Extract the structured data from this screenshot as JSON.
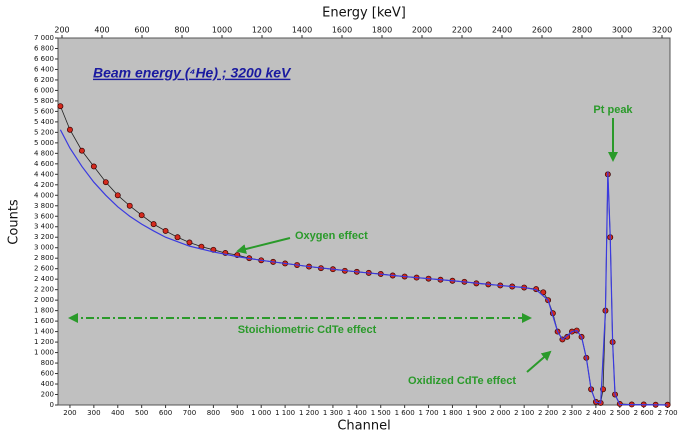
{
  "chart_data": {
    "type": "scatter",
    "title": "Beam energy (⁴He) ; 3200 keV",
    "xlabel": "Channel",
    "ylabel": "Counts",
    "x2label": "Energy [keV]",
    "annotations": [
      "Pt peak",
      "Oxygen effect",
      "Stoichiometric CdTe effect",
      "Oxidized CdTe effect"
    ],
    "xlim": [
      150,
      2710
    ],
    "ylim": [
      0,
      7000
    ],
    "x2lim": [
      180,
      3240
    ],
    "xticks": [
      200,
      300,
      400,
      500,
      600,
      700,
      800,
      900,
      {
        "value": 1000,
        "label": "1 000"
      },
      {
        "value": 1100,
        "label": "1 100"
      },
      {
        "value": 1200,
        "label": "1 200"
      },
      {
        "value": 1300,
        "label": "1 300"
      },
      {
        "value": 1400,
        "label": "1 400"
      },
      {
        "value": 1500,
        "label": "1 500"
      },
      {
        "value": 1600,
        "label": "1 600"
      },
      {
        "value": 1700,
        "label": "1 700"
      },
      {
        "value": 1800,
        "label": "1 800"
      },
      {
        "value": 1900,
        "label": "1 900"
      },
      {
        "value": 2000,
        "label": "2 000"
      },
      {
        "value": 2100,
        "label": "2 100"
      },
      {
        "value": 2200,
        "label": "2 200"
      },
      {
        "value": 2300,
        "label": "2 300"
      },
      {
        "value": 2400,
        "label": "2 400"
      },
      {
        "value": 2500,
        "label": "2 500"
      },
      {
        "value": 2600,
        "label": "2 600"
      },
      {
        "value": 2700,
        "label": "2 700"
      }
    ],
    "yticks": [
      0,
      200,
      400,
      600,
      800,
      {
        "value": 1000,
        "label": "1 000"
      },
      {
        "value": 1200,
        "label": "1 200"
      },
      {
        "value": 1400,
        "label": "1 400"
      },
      {
        "value": 1600,
        "label": "1 600"
      },
      {
        "value": 1800,
        "label": "1 800"
      },
      {
        "value": 2000,
        "label": "2 000"
      },
      {
        "value": 2200,
        "label": "2 200"
      },
      {
        "value": 2400,
        "label": "2 400"
      },
      {
        "value": 2600,
        "label": "2 600"
      },
      {
        "value": 2800,
        "label": "2 800"
      },
      {
        "value": 3000,
        "label": "3 000"
      },
      {
        "value": 3200,
        "label": "3 200"
      },
      {
        "value": 3400,
        "label": "3 400"
      },
      {
        "value": 3600,
        "label": "3 600"
      },
      {
        "value": 3800,
        "label": "3 800"
      },
      {
        "value": 4000,
        "label": "4 000"
      },
      {
        "value": 4200,
        "label": "4 200"
      },
      {
        "value": 4400,
        "label": "4 400"
      },
      {
        "value": 4600,
        "label": "4 600"
      },
      {
        "value": 4800,
        "label": "4 800"
      },
      {
        "value": 5000,
        "label": "5 000"
      },
      {
        "value": 5200,
        "label": "5 200"
      },
      {
        "value": 5400,
        "label": "5 400"
      },
      {
        "value": 5600,
        "label": "5 600"
      },
      {
        "value": 5800,
        "label": "5 800"
      },
      {
        "value": 6000,
        "label": "6 000"
      },
      {
        "value": 6200,
        "label": "6 200"
      },
      {
        "value": 6400,
        "label": "6 400"
      },
      {
        "value": 6600,
        "label": "6 600"
      },
      {
        "value": 6800,
        "label": "6 800"
      },
      {
        "value": 7000,
        "label": "7 000"
      }
    ],
    "x2ticks": [
      200,
      400,
      600,
      800,
      1000,
      1200,
      1400,
      1600,
      1800,
      2000,
      2200,
      2400,
      2600,
      2800,
      3000,
      3200
    ],
    "series": [
      {
        "type": "scatter",
        "color": "#d42a1e",
        "x": [
          160,
          200,
          250,
          300,
          350,
          400,
          450,
          500,
          550,
          600,
          650,
          700,
          750,
          800,
          850,
          900,
          950,
          1000,
          1050,
          1100,
          1150,
          1200,
          1250,
          1300,
          1350,
          1400,
          1450,
          1500,
          1550,
          1600,
          1650,
          1700,
          1750,
          1800,
          1850,
          1900,
          1950,
          2000,
          2050,
          2100,
          2150,
          2180,
          2200,
          2220,
          2240,
          2260,
          2280,
          2300,
          2320,
          2340,
          2360,
          2380,
          2400,
          2420,
          2430,
          2440,
          2450,
          2460,
          2470,
          2480,
          2500,
          2550,
          2600,
          2650,
          2700
        ],
        "values": [
          5700,
          5250,
          4850,
          4550,
          4250,
          4000,
          3800,
          3620,
          3450,
          3320,
          3200,
          3100,
          3020,
          2960,
          2900,
          2860,
          2800,
          2760,
          2730,
          2700,
          2670,
          2640,
          2610,
          2590,
          2560,
          2540,
          2520,
          2500,
          2470,
          2450,
          2430,
          2410,
          2390,
          2370,
          2350,
          2320,
          2300,
          2280,
          2260,
          2240,
          2210,
          2150,
          2000,
          1750,
          1400,
          1250,
          1300,
          1400,
          1420,
          1300,
          900,
          300,
          60,
          40,
          300,
          1800,
          4400,
          3200,
          1200,
          200,
          20,
          10,
          10,
          5,
          5
        ]
      },
      {
        "type": "line",
        "color": "#3a3ae0",
        "x": [
          160,
          200,
          250,
          300,
          350,
          400,
          450,
          500,
          550,
          600,
          700,
          800,
          900,
          1000,
          1200,
          1400,
          1600,
          1800,
          2000,
          2100,
          2150,
          2200,
          2240,
          2260,
          2300,
          2320,
          2340,
          2360,
          2380,
          2400,
          2420,
          2440,
          2450,
          2460,
          2470,
          2480,
          2500,
          2700
        ],
        "values": [
          5250,
          4900,
          4550,
          4250,
          4000,
          3780,
          3600,
          3450,
          3320,
          3200,
          3030,
          2920,
          2830,
          2760,
          2640,
          2540,
          2450,
          2370,
          2280,
          2240,
          2200,
          2000,
          1400,
          1250,
          1400,
          1420,
          1300,
          900,
          300,
          50,
          40,
          1800,
          4450,
          3200,
          1200,
          200,
          10,
          0
        ]
      }
    ]
  }
}
